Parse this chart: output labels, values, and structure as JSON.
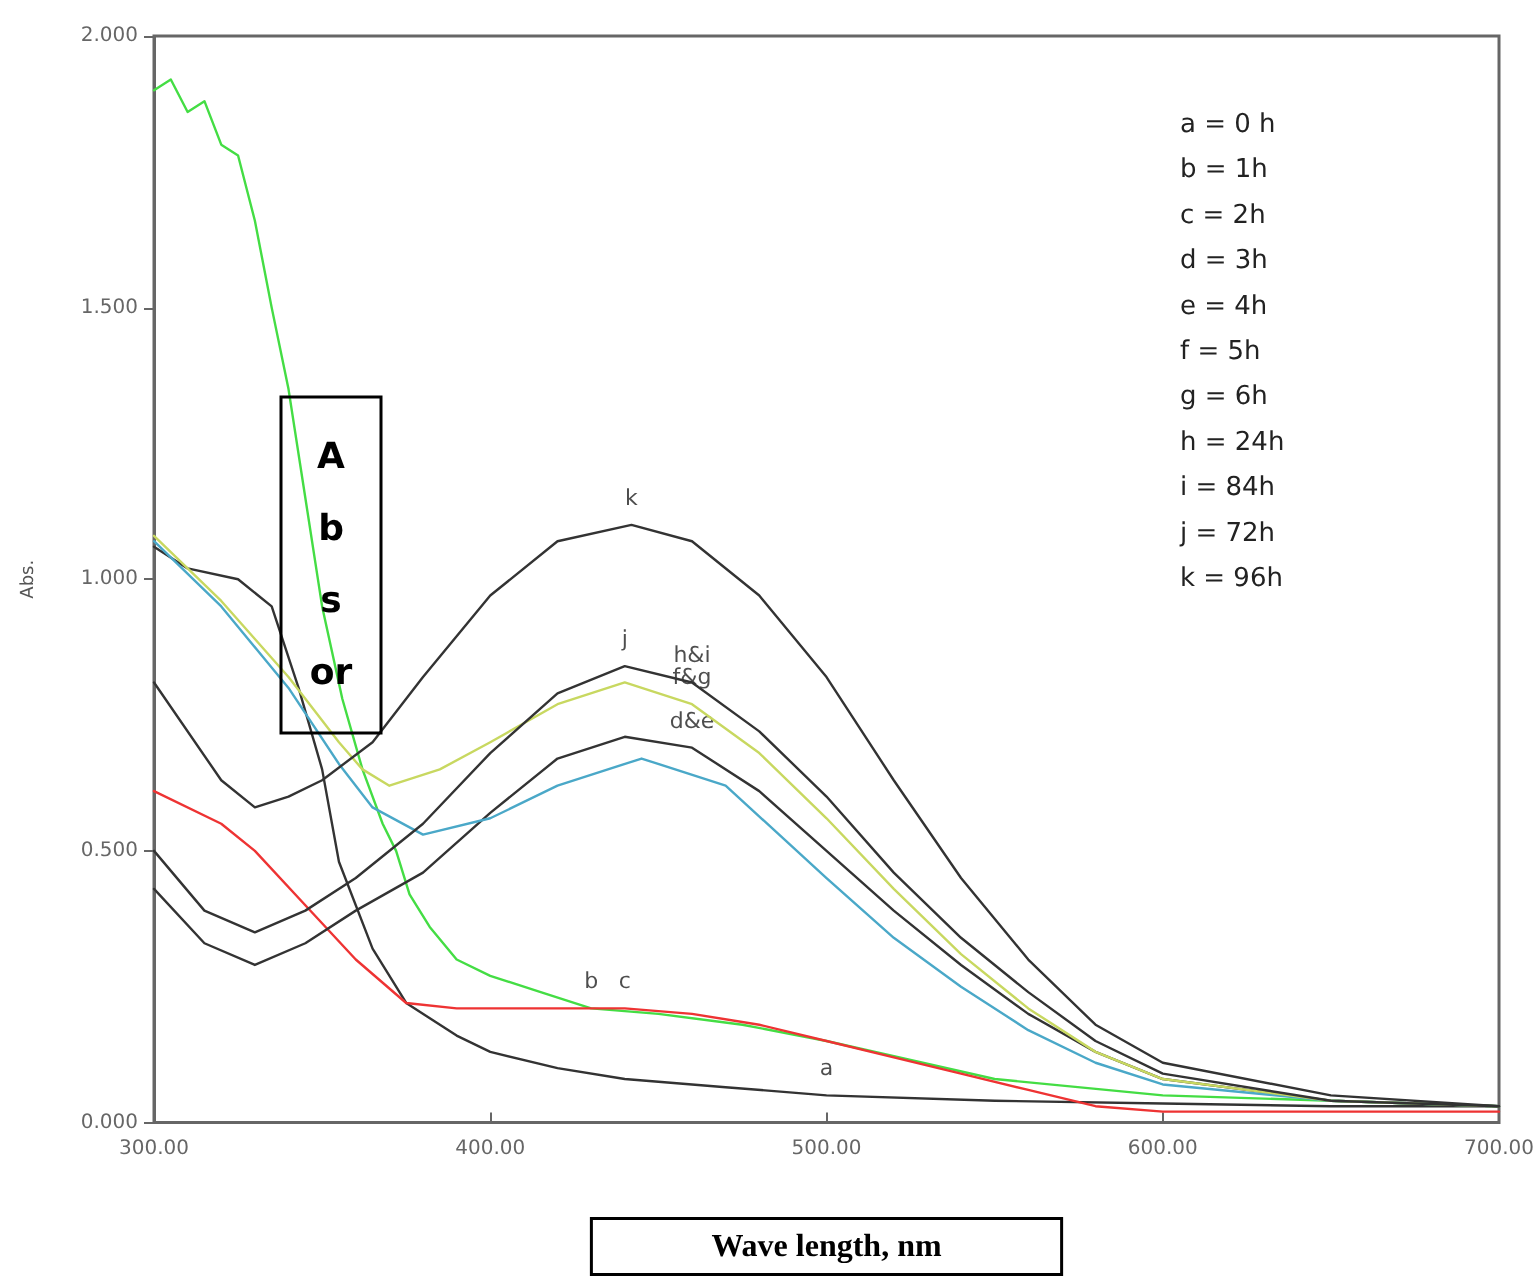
{
  "chart_data": {
    "type": "line",
    "xlabel": "Wave length, nm",
    "ylabel": "Abs.",
    "xlim": [
      300,
      700
    ],
    "ylim": [
      0,
      2
    ],
    "xticks": [
      {
        "value": 300,
        "label": "300.00"
      },
      {
        "value": 400,
        "label": "400.00"
      },
      {
        "value": 500,
        "label": "500.00"
      },
      {
        "value": 600,
        "label": "600.00"
      },
      {
        "value": 700,
        "label": "700.00"
      }
    ],
    "yticks": [
      {
        "value": 0,
        "label": "0.000"
      },
      {
        "value": 0.5,
        "label": "0.500"
      },
      {
        "value": 1,
        "label": "1.000"
      },
      {
        "value": 1.5,
        "label": "1.500"
      },
      {
        "value": 2,
        "label": "2.000"
      }
    ],
    "grid": false,
    "marker": "none",
    "line_style": "solid",
    "series": [
      {
        "color": "#333333",
        "x": [
          300,
          310,
          325,
          335,
          343,
          350,
          355,
          365,
          375,
          390,
          400,
          420,
          440,
          470,
          500,
          550,
          600,
          650,
          700
        ],
        "values": [
          1.06,
          1.02,
          1.0,
          0.95,
          0.8,
          0.65,
          0.48,
          0.32,
          0.22,
          0.16,
          0.13,
          0.1,
          0.08,
          0.065,
          0.05,
          0.04,
          0.035,
          0.03,
          0.03
        ]
      },
      {
        "color": "#44dd44",
        "x": [
          300,
          305,
          310,
          315,
          320,
          325,
          330,
          335,
          340,
          345,
          350,
          356,
          362,
          368,
          372,
          376,
          382,
          390,
          400,
          415,
          430,
          450,
          475,
          500,
          550,
          600,
          650,
          700
        ],
        "values": [
          1.9,
          1.92,
          1.86,
          1.88,
          1.8,
          1.78,
          1.66,
          1.5,
          1.35,
          1.15,
          0.95,
          0.78,
          0.65,
          0.55,
          0.5,
          0.42,
          0.36,
          0.3,
          0.27,
          0.24,
          0.21,
          0.2,
          0.18,
          0.15,
          0.08,
          0.05,
          0.04,
          0.03
        ]
      },
      {
        "color": "#ee3333",
        "x": [
          300,
          320,
          330,
          345,
          360,
          375,
          390,
          400,
          420,
          440,
          460,
          480,
          500,
          520,
          540,
          560,
          580,
          600,
          650,
          700
        ],
        "values": [
          0.61,
          0.55,
          0.5,
          0.4,
          0.3,
          0.22,
          0.21,
          0.21,
          0.21,
          0.21,
          0.2,
          0.18,
          0.15,
          0.12,
          0.09,
          0.06,
          0.03,
          0.02,
          0.02,
          0.02
        ]
      },
      {
        "color": "#333333",
        "x": [
          300,
          315,
          330,
          345,
          360,
          380,
          400,
          420,
          440,
          460,
          480,
          500,
          520,
          540,
          560,
          580,
          600,
          650,
          700
        ],
        "values": [
          0.43,
          0.33,
          0.29,
          0.33,
          0.39,
          0.46,
          0.57,
          0.67,
          0.71,
          0.69,
          0.61,
          0.5,
          0.39,
          0.29,
          0.2,
          0.13,
          0.08,
          0.04,
          0.03
        ]
      },
      {
        "color": "#4aa8c8",
        "x": [
          300,
          320,
          340,
          355,
          365,
          380,
          400,
          420,
          445,
          470,
          500,
          520,
          540,
          560,
          580,
          600,
          650,
          700
        ],
        "values": [
          1.07,
          0.95,
          0.8,
          0.66,
          0.58,
          0.53,
          0.56,
          0.62,
          0.67,
          0.62,
          0.45,
          0.34,
          0.25,
          0.17,
          0.11,
          0.07,
          0.04,
          0.03
        ]
      },
      {
        "color": "#c8d860",
        "x": [
          300,
          320,
          340,
          355,
          362,
          370,
          385,
          400,
          420,
          440,
          460,
          480,
          500,
          520,
          540,
          560,
          580,
          600,
          650,
          700
        ],
        "values": [
          1.08,
          0.96,
          0.82,
          0.7,
          0.65,
          0.62,
          0.65,
          0.7,
          0.77,
          0.81,
          0.77,
          0.68,
          0.56,
          0.43,
          0.31,
          0.21,
          0.13,
          0.08,
          0.04,
          0.03
        ]
      },
      {
        "color": "#333333",
        "x": [
          300,
          315,
          330,
          345,
          360,
          380,
          400,
          420,
          440,
          460,
          480,
          500,
          520,
          540,
          560,
          580,
          600,
          650,
          700
        ],
        "values": [
          0.5,
          0.39,
          0.35,
          0.39,
          0.45,
          0.55,
          0.68,
          0.79,
          0.84,
          0.81,
          0.72,
          0.6,
          0.46,
          0.34,
          0.24,
          0.15,
          0.09,
          0.04,
          0.03
        ]
      },
      {
        "color": "#333333",
        "x": [
          300,
          320,
          330,
          340,
          350,
          365,
          380,
          400,
          420,
          442,
          460,
          480,
          500,
          520,
          540,
          560,
          580,
          600,
          650,
          700
        ],
        "values": [
          0.81,
          0.63,
          0.58,
          0.6,
          0.63,
          0.7,
          0.82,
          0.97,
          1.07,
          1.1,
          1.07,
          0.97,
          0.82,
          0.63,
          0.45,
          0.3,
          0.18,
          0.11,
          0.05,
          0.03
        ]
      }
    ],
    "annotations": [
      {
        "text": "k",
        "x": 442,
        "y": 1.1
      },
      {
        "text": "j",
        "x": 440,
        "y": 0.84
      },
      {
        "text": "h&i",
        "x": 460,
        "y": 0.81
      },
      {
        "text": "f&g",
        "x": 460,
        "y": 0.77
      },
      {
        "text": "d&e",
        "x": 460,
        "y": 0.69
      },
      {
        "text": "b",
        "x": 430,
        "y": 0.21
      },
      {
        "text": "c",
        "x": 440,
        "y": 0.21
      },
      {
        "text": "a",
        "x": 500,
        "y": 0.05
      },
      "a = 0 h",
      "b = 1h",
      "c = 2h",
      "d = 3h",
      "e = 4h",
      "f = 5h",
      "g = 6h",
      "h = 24h",
      "i = 84h",
      "j = 72h",
      "k = 96h",
      "A\nb\ns\nor"
    ]
  }
}
